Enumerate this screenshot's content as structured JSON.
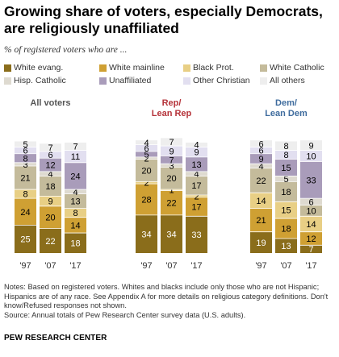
{
  "title": "Growing share of voters, especially Democrats, are religiously unaffiliated",
  "subtitle": "% of registered voters who are ...",
  "notes": "Notes: Based on registered voters. Whites and blacks include only those who are not Hispanic; Hispanics are of any race. See Appendix A for more details on religious category definitions. Don't know/Refused responses not shown.",
  "source": "Source: Annual totals of Pew Research Center survey data (U.S. adults).",
  "brand": "PEW RESEARCH CENTER",
  "chart_data": {
    "type": "bar",
    "stacked": true,
    "unit": "%",
    "categories": [
      "'97",
      "'07",
      "'17"
    ],
    "groups": [
      {
        "name": "All voters",
        "series": [
          {
            "name": "White evang.",
            "values": [
              25,
              22,
              18
            ]
          },
          {
            "name": "White mainline",
            "values": [
              24,
              20,
              14
            ]
          },
          {
            "name": "Black Prot.",
            "values": [
              8,
              9,
              8
            ]
          },
          {
            "name": "White Catholic",
            "values": [
              21,
              18,
              13
            ]
          },
          {
            "name": "Hisp. Catholic",
            "values": [
              3,
              4,
              4
            ]
          },
          {
            "name": "Unaffiliated",
            "values": [
              8,
              12,
              24
            ]
          },
          {
            "name": "Other Christian",
            "values": [
              6,
              6,
              11
            ]
          },
          {
            "name": "All others",
            "values": [
              5,
              7,
              7
            ]
          }
        ]
      },
      {
        "name": "Rep/ Lean Rep",
        "series": [
          {
            "name": "White evang.",
            "values": [
              34,
              34,
              33
            ]
          },
          {
            "name": "White mainline",
            "values": [
              28,
              22,
              17
            ]
          },
          {
            "name": "Black Prot.",
            "values": [
              2,
              1,
              2
            ]
          },
          {
            "name": "White Catholic",
            "values": [
              20,
              20,
              17
            ]
          },
          {
            "name": "Hisp. Catholic",
            "values": [
              2,
              3,
              4
            ]
          },
          {
            "name": "Unaffiliated",
            "values": [
              5,
              7,
              13
            ]
          },
          {
            "name": "Other Christian",
            "values": [
              6,
              9,
              9
            ]
          },
          {
            "name": "All others",
            "values": [
              4,
              7,
              4
            ]
          }
        ]
      },
      {
        "name": "Dem/ Lean Dem",
        "series": [
          {
            "name": "White evang.",
            "values": [
              19,
              13,
              7
            ]
          },
          {
            "name": "White mainline",
            "values": [
              21,
              18,
              12
            ]
          },
          {
            "name": "Black Prot.",
            "values": [
              14,
              15,
              14
            ]
          },
          {
            "name": "White Catholic",
            "values": [
              22,
              18,
              10
            ]
          },
          {
            "name": "Hisp. Catholic",
            "values": [
              4,
              5,
              6
            ]
          },
          {
            "name": "Unaffiliated",
            "values": [
              9,
              15,
              33
            ]
          },
          {
            "name": "Other Christian",
            "values": [
              6,
              8,
              10
            ]
          },
          {
            "name": "All others",
            "values": [
              6,
              8,
              9
            ]
          }
        ]
      }
    ],
    "colors": [
      "#8a6d1b",
      "#cfa033",
      "#e8cf85",
      "#c4bb9b",
      "#dedad0",
      "#a99cba",
      "#e2dff0",
      "#eeeeee"
    ],
    "label_colors": [
      "#ffffff",
      "#000000",
      "#000000",
      "#000000",
      "#000000",
      "#000000",
      "#000000",
      "#000000"
    ],
    "legend": {
      "placement": "top",
      "items": [
        "White evang.",
        "White mainline",
        "Black Prot.",
        "White Catholic",
        "Hisp. Catholic",
        "Unaffiliated",
        "Other Christian",
        "All others"
      ]
    },
    "ylim": [
      0,
      100
    ],
    "grid": false
  }
}
